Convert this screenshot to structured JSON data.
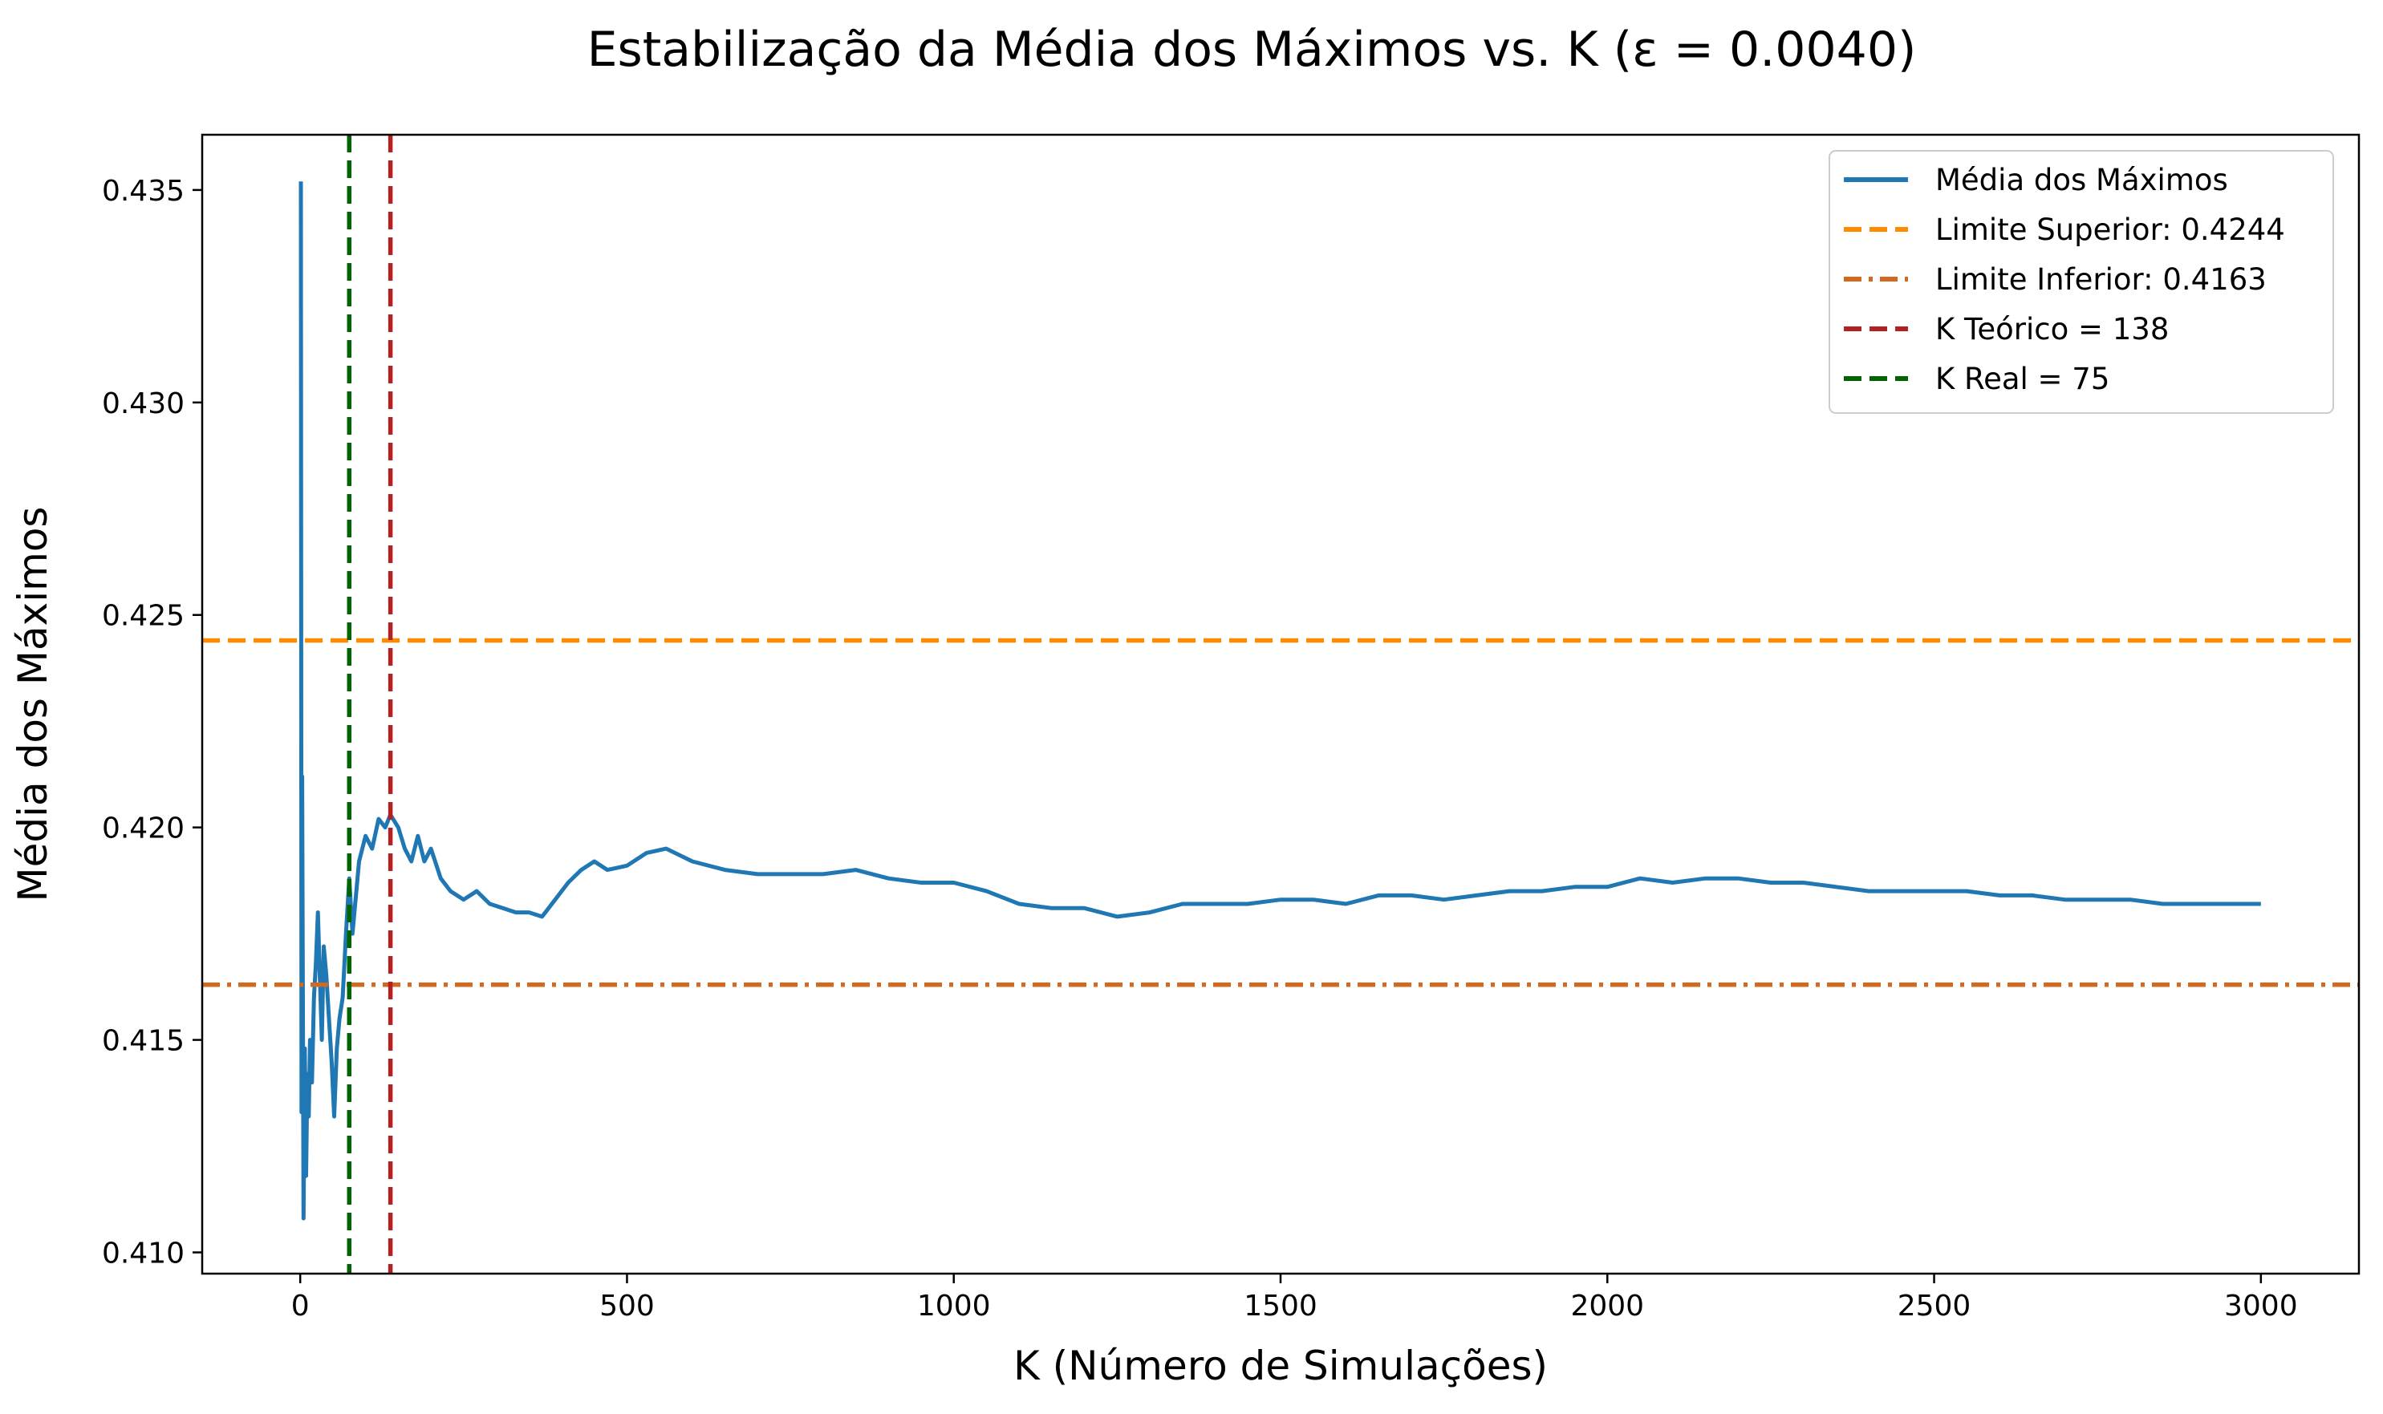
{
  "chart_data": {
    "type": "line",
    "title": "Estabilização da Média dos Máximos vs. K (ε = 0.0040)",
    "xlabel": "K (Número de Simulações)",
    "ylabel": "Média dos Máximos",
    "xlim": [
      -150,
      3150
    ],
    "ylim": [
      0.4095,
      0.4363
    ],
    "xticks": [
      0,
      500,
      1000,
      1500,
      2000,
      2500,
      3000
    ],
    "xtick_labels": [
      "0",
      "500",
      "1000",
      "1500",
      "2000",
      "2500",
      "3000"
    ],
    "yticks": [
      0.41,
      0.415,
      0.42,
      0.425,
      0.43,
      0.435
    ],
    "ytick_labels": [
      "0.410",
      "0.415",
      "0.420",
      "0.425",
      "0.430",
      "0.435"
    ],
    "grid": false,
    "legend_position": "top-right",
    "series": [
      {
        "name": "Média dos Máximos",
        "color": "#1f77b4",
        "style": "solid",
        "x": [
          1,
          2,
          3,
          5,
          7,
          9,
          11,
          13,
          15,
          18,
          21,
          24,
          27,
          30,
          33,
          36,
          40,
          44,
          48,
          52,
          56,
          60,
          65,
          70,
          75,
          80,
          90,
          100,
          110,
          120,
          130,
          138,
          150,
          160,
          170,
          180,
          190,
          200,
          215,
          230,
          250,
          270,
          290,
          310,
          330,
          350,
          370,
          390,
          410,
          430,
          450,
          470,
          500,
          530,
          560,
          600,
          650,
          700,
          750,
          800,
          850,
          900,
          950,
          1000,
          1050,
          1100,
          1150,
          1200,
          1250,
          1300,
          1350,
          1400,
          1450,
          1500,
          1550,
          1600,
          1650,
          1700,
          1750,
          1800,
          1850,
          1900,
          1950,
          2000,
          2050,
          2100,
          2150,
          2200,
          2250,
          2300,
          2350,
          2400,
          2450,
          2500,
          2550,
          2600,
          2650,
          2700,
          2750,
          2800,
          2850,
          2900,
          2950,
          3000
        ],
        "y": [
          0.4352,
          0.4133,
          0.4212,
          0.4108,
          0.4148,
          0.4118,
          0.4142,
          0.4132,
          0.415,
          0.414,
          0.416,
          0.4168,
          0.418,
          0.4165,
          0.415,
          0.4172,
          0.4165,
          0.4155,
          0.4145,
          0.4132,
          0.4148,
          0.4155,
          0.416,
          0.4175,
          0.4188,
          0.4175,
          0.4192,
          0.4198,
          0.4195,
          0.4202,
          0.42,
          0.4203,
          0.42,
          0.4195,
          0.4192,
          0.4198,
          0.4192,
          0.4195,
          0.4188,
          0.4185,
          0.4183,
          0.4185,
          0.4182,
          0.4181,
          0.418,
          0.418,
          0.4179,
          0.4183,
          0.4187,
          0.419,
          0.4192,
          0.419,
          0.4191,
          0.4194,
          0.4195,
          0.4192,
          0.419,
          0.4189,
          0.4189,
          0.4189,
          0.419,
          0.4188,
          0.4187,
          0.4187,
          0.4185,
          0.4182,
          0.4181,
          0.4181,
          0.4179,
          0.418,
          0.4182,
          0.4182,
          0.4182,
          0.4183,
          0.4183,
          0.4182,
          0.4184,
          0.4184,
          0.4183,
          0.4184,
          0.4185,
          0.4185,
          0.4186,
          0.4186,
          0.4188,
          0.4187,
          0.4188,
          0.4188,
          0.4187,
          0.4187,
          0.4186,
          0.4185,
          0.4185,
          0.4185,
          0.4185,
          0.4184,
          0.4184,
          0.4183,
          0.4183,
          0.4183,
          0.4182,
          0.4182,
          0.4182,
          0.4182
        ]
      },
      {
        "name": "Limite Superior: 0.4244",
        "color": "#ff8c00",
        "style": "dashed",
        "orientation": "horizontal",
        "value": 0.4244
      },
      {
        "name": "Limite Inferior: 0.4163",
        "color": "#d2691e",
        "style": "dashdot",
        "orientation": "horizontal",
        "value": 0.4163
      },
      {
        "name": "K Teórico = 138",
        "color": "#b22222",
        "style": "dashed",
        "orientation": "vertical",
        "value": 138
      },
      {
        "name": "K Real = 75",
        "color": "#006400",
        "style": "dashed",
        "orientation": "vertical",
        "value": 75
      }
    ]
  }
}
